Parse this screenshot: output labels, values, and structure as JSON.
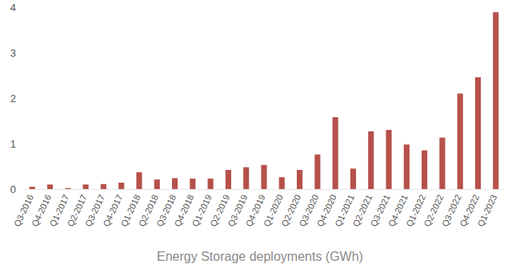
{
  "chart_data": {
    "type": "bar",
    "x_label": "Energy Storage deployments (GWh)",
    "categories": [
      "Q3-2016",
      "Q4-2016",
      "Q1-2017",
      "Q2-2017",
      "Q3-2017",
      "Q4-2017",
      "Q1-2018",
      "Q2-2018",
      "Q3-2018",
      "Q4-2018",
      "Q1-2019",
      "Q2-2019",
      "Q3-2019",
      "Q4-2019",
      "Q1-2020",
      "Q2-2020",
      "Q3-2020",
      "Q4-2020",
      "Q1-2021",
      "Q2-2021",
      "Q3-2021",
      "Q4-2021",
      "Q1-2022",
      "Q2-2022",
      "Q3-2022",
      "Q4-2022",
      "Q1-2023"
    ],
    "values": [
      0.05,
      0.1,
      0.02,
      0.1,
      0.11,
      0.14,
      0.37,
      0.21,
      0.24,
      0.23,
      0.23,
      0.42,
      0.48,
      0.53,
      0.26,
      0.42,
      0.76,
      1.58,
      0.45,
      1.27,
      1.3,
      0.98,
      0.85,
      1.13,
      2.1,
      2.46,
      3.89
    ],
    "color": "#b5514a",
    "ylim": [
      0,
      4
    ],
    "yticks": [
      0,
      1,
      2,
      3,
      4
    ]
  }
}
